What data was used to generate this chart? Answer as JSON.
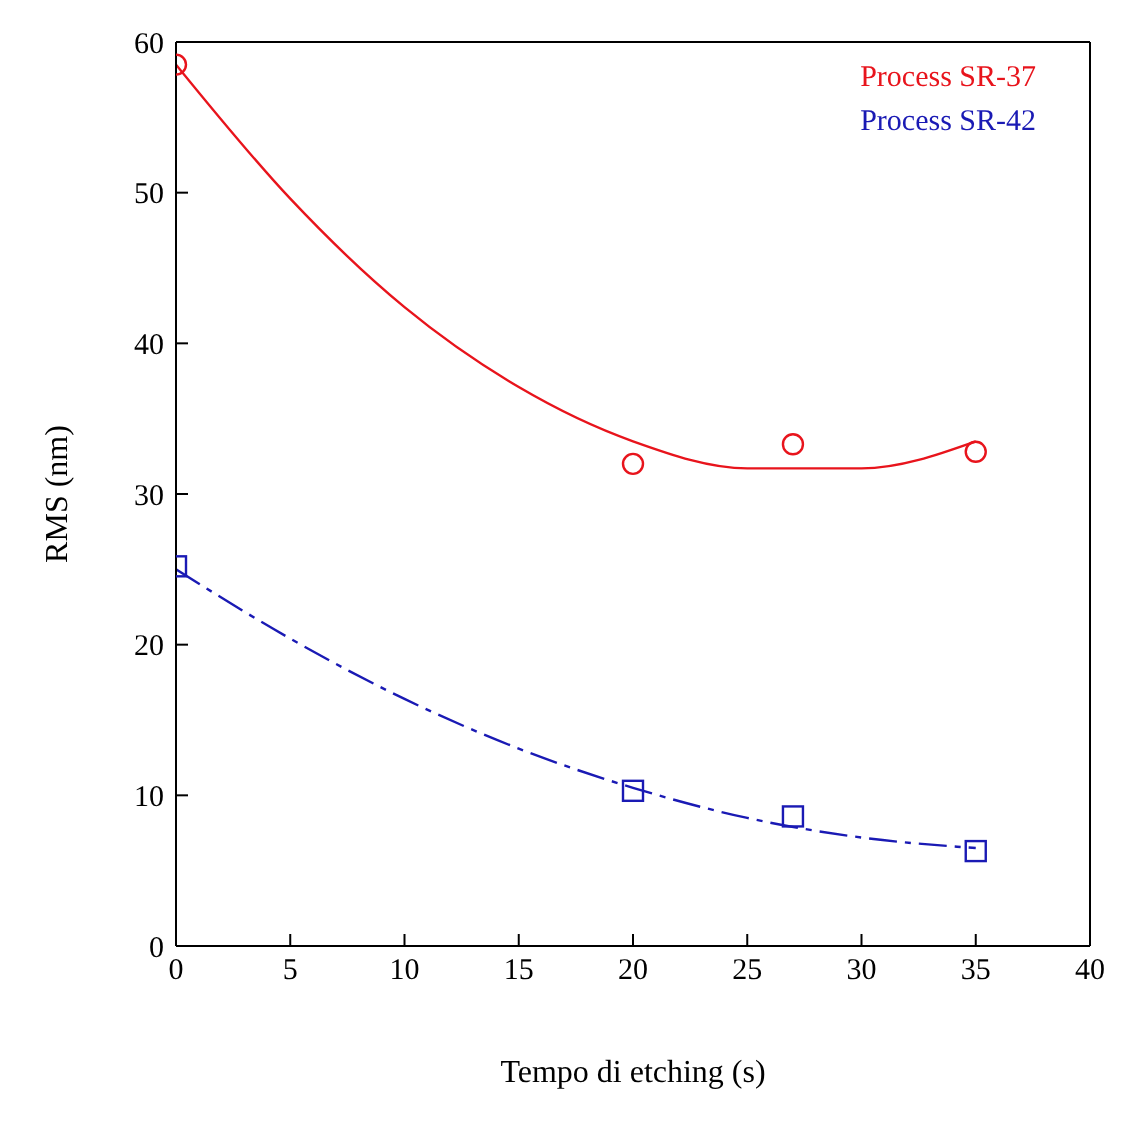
{
  "chart_data": {
    "type": "scatter",
    "xlabel": "Tempo di etching (s)",
    "ylabel": "RMS (nm)",
    "xlim": [
      0,
      40
    ],
    "xticks": [
      0,
      5,
      10,
      15,
      20,
      25,
      30,
      35,
      40
    ],
    "ylim": [
      0,
      60
    ],
    "yticks": [
      0,
      10,
      20,
      30,
      40,
      50,
      60
    ],
    "grid": false,
    "legend": "top right",
    "series": [
      {
        "name": "Process SR-37",
        "marker": "circle",
        "color": "#e8141c",
        "x": [
          0,
          20,
          27,
          35
        ],
        "values": [
          58.5,
          32,
          33.3,
          32.8
        ]
      },
      {
        "name": "Process SR-42",
        "marker": "square",
        "color": "#1a1ab4",
        "x": [
          0,
          20,
          27,
          35
        ],
        "values": [
          25.2,
          10.3,
          8.6,
          6.3
        ]
      },
      {
        "type": "line",
        "marker": "none",
        "line_style": "solid",
        "color": "#e8141c",
        "x": [
          0,
          5,
          10,
          15,
          20,
          25,
          30,
          35
        ],
        "values": [
          58.5,
          49.6,
          42.4,
          37.1,
          33.5,
          31.7,
          31.7,
          33.5
        ]
      },
      {
        "type": "line",
        "marker": "none",
        "line_style": "dashed",
        "color": "#1a1ab4",
        "x": [
          0,
          5,
          10,
          15,
          20,
          25,
          30,
          35
        ],
        "values": [
          25,
          20.4,
          16.4,
          13.1,
          10.5,
          8.5,
          7.2,
          6.5
        ]
      }
    ]
  }
}
